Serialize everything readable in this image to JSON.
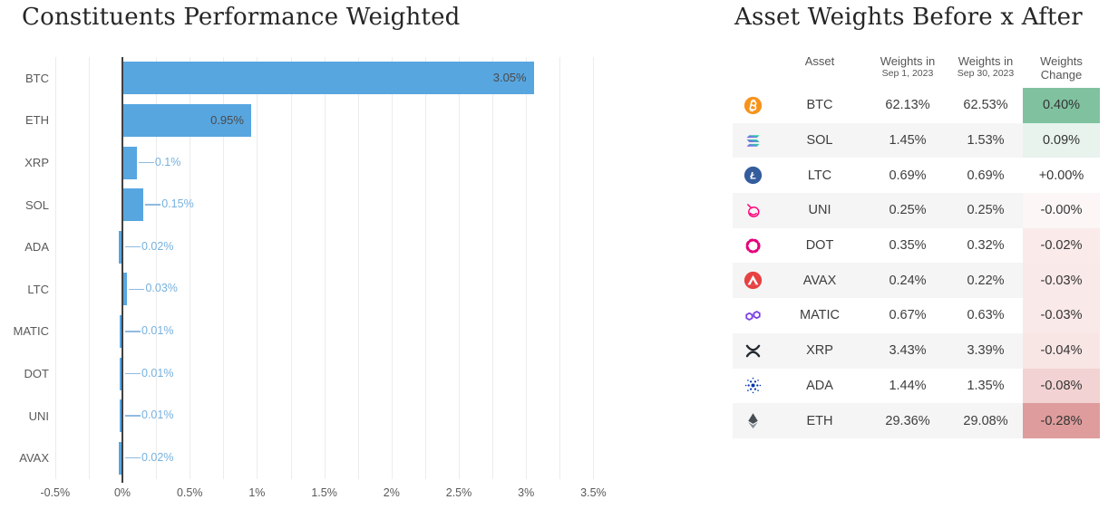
{
  "chart_data": {
    "type": "bar",
    "orientation": "horizontal",
    "title": "Constituents Performance Weighted",
    "categories": [
      "BTC",
      "ETH",
      "XRP",
      "SOL",
      "ADA",
      "LTC",
      "MATIC",
      "DOT",
      "UNI",
      "AVAX"
    ],
    "values": [
      3.05,
      0.95,
      0.1,
      0.15,
      -0.02,
      0.03,
      -0.01,
      -0.01,
      -0.01,
      -0.02
    ],
    "bar_labels": [
      "3.05%",
      "0.95%",
      "0.1%",
      "0.15%",
      "0.02%",
      "0.03%",
      "0.01%",
      "0.01%",
      "0.01%",
      "0.02%"
    ],
    "xlabel": "",
    "ylabel": "",
    "xlim": [
      -0.5,
      3.5
    ],
    "x_tick_labels": [
      "-0.5%",
      "0%",
      "0.5%",
      "1%",
      "1.5%",
      "2%",
      "2.5%",
      "3%",
      "3.5%"
    ],
    "grid": true,
    "legend": false,
    "bar_color": "#58A6E0",
    "inside_label_color": "#4a4a4a",
    "outside_label_color": "#76b1df"
  },
  "table": {
    "title": "Asset Weights Before x After",
    "headers": {
      "asset": "Asset",
      "w1_line1": "Weights in",
      "w1_line2": "Sep 1, 2023",
      "w2_line1": "Weights in",
      "w2_line2": "Sep 30, 2023",
      "chg_line1": "Weights",
      "chg_line2": "Change"
    },
    "rows": [
      {
        "asset": "BTC",
        "icon": "btc-icon",
        "w1": "62.13%",
        "w2": "62.53%",
        "change": "0.40%",
        "change_bg": "#80c2a0"
      },
      {
        "asset": "SOL",
        "icon": "sol-icon",
        "w1": "1.45%",
        "w2": "1.53%",
        "change": "0.09%",
        "change_bg": "#e7f3ec"
      },
      {
        "asset": "LTC",
        "icon": "ltc-icon",
        "w1": "0.69%",
        "w2": "0.69%",
        "change": "+0.00%",
        "change_bg": "#ffffff"
      },
      {
        "asset": "UNI",
        "icon": "uni-icon",
        "w1": "0.25%",
        "w2": "0.25%",
        "change": "-0.00%",
        "change_bg": "#fcf6f6"
      },
      {
        "asset": "DOT",
        "icon": "dot-icon",
        "w1": "0.35%",
        "w2": "0.32%",
        "change": "-0.02%",
        "change_bg": "#faebea"
      },
      {
        "asset": "AVAX",
        "icon": "avax-icon",
        "w1": "0.24%",
        "w2": "0.22%",
        "change": "-0.03%",
        "change_bg": "#f9e9e8"
      },
      {
        "asset": "MATIC",
        "icon": "matic-icon",
        "w1": "0.67%",
        "w2": "0.63%",
        "change": "-0.03%",
        "change_bg": "#f9e9e8"
      },
      {
        "asset": "XRP",
        "icon": "xrp-icon",
        "w1": "3.43%",
        "w2": "3.39%",
        "change": "-0.04%",
        "change_bg": "#f8e6e5"
      },
      {
        "asset": "ADA",
        "icon": "ada-icon",
        "w1": "1.44%",
        "w2": "1.35%",
        "change": "-0.08%",
        "change_bg": "#f2d2d2"
      },
      {
        "asset": "ETH",
        "icon": "eth-icon",
        "w1": "29.36%",
        "w2": "29.08%",
        "change": "-0.28%",
        "change_bg": "#de9c9c"
      }
    ]
  }
}
